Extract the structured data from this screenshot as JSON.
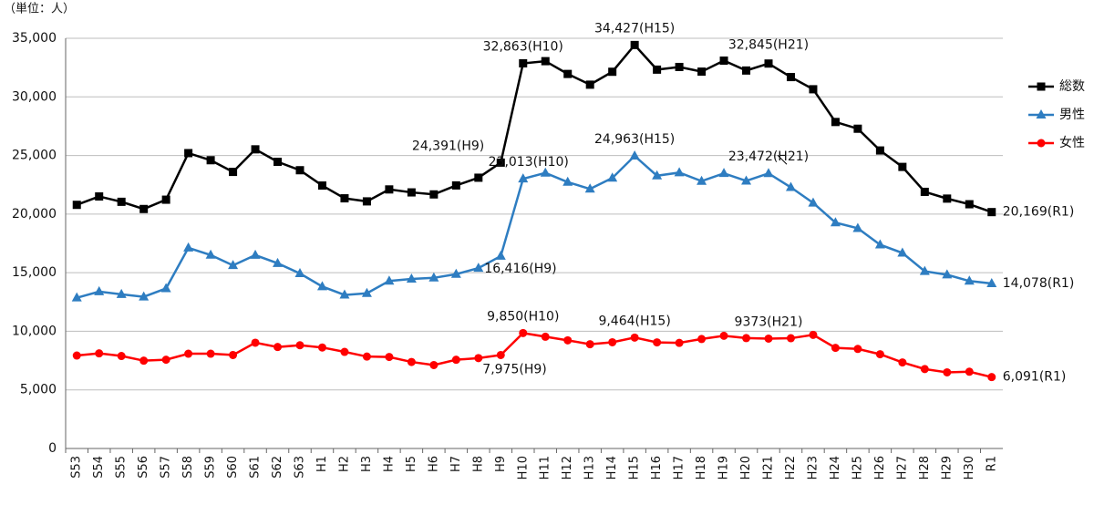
{
  "chart_data": {
    "type": "line",
    "unit_label": "（単位：人）",
    "categories": [
      "S53",
      "S54",
      "S55",
      "S56",
      "S57",
      "S58",
      "S59",
      "S60",
      "S61",
      "S62",
      "S63",
      "H1",
      "H2",
      "H3",
      "H4",
      "H5",
      "H6",
      "H7",
      "H8",
      "H9",
      "H10",
      "H11",
      "H12",
      "H13",
      "H14",
      "H15",
      "H16",
      "H17",
      "H18",
      "H19",
      "H20",
      "H21",
      "H22",
      "H23",
      "H24",
      "H25",
      "H26",
      "H27",
      "H28",
      "H29",
      "H30",
      "R1"
    ],
    "series": [
      {
        "name": "総数",
        "color": "#000000",
        "marker": "square",
        "values": [
          20788,
          21503,
          21048,
          20434,
          21228,
          25202,
          24596,
          23599,
          25524,
          24460,
          23742,
          22436,
          21346,
          21084,
          22104,
          21851,
          21679,
          22445,
          23104,
          24391,
          32863,
          33048,
          31957,
          31042,
          32143,
          34427,
          32325,
          32552,
          32155,
          33093,
          32249,
          32845,
          31690,
          30651,
          27858,
          27283,
          25427,
          24025,
          21897,
          21321,
          20840,
          20169
        ]
      },
      {
        "name": "男性",
        "color": "#2e7dc1",
        "marker": "triangle",
        "values": [
          12859,
          13386,
          13155,
          12942,
          13654,
          17116,
          16508,
          15624,
          16497,
          15802,
          14934,
          13818,
          13102,
          13242,
          14296,
          14468,
          14560,
          14874,
          15393,
          16416,
          23013,
          23512,
          22727,
          22144,
          23080,
          24963,
          23272,
          23540,
          22813,
          23478,
          22831,
          23472,
          22283,
          20955,
          19273,
          18787,
          17386,
          16681,
          15121,
          14826,
          14290,
          14078
        ]
      },
      {
        "name": "女性",
        "color": "#ff0000",
        "marker": "circle",
        "values": [
          7929,
          8117,
          7893,
          7492,
          7574,
          8086,
          8088,
          7975,
          9027,
          8658,
          8808,
          8618,
          8244,
          7842,
          7808,
          7383,
          7119,
          7571,
          7711,
          7975,
          9850,
          9536,
          9230,
          8898,
          9063,
          9464,
          9053,
          9012,
          9342,
          9615,
          9418,
          9373,
          9407,
          9696,
          8585,
          8496,
          8041,
          7344,
          6776,
          6495,
          6550,
          6091
        ]
      }
    ],
    "ylim": [
      0,
      35000
    ],
    "yticks": [
      0,
      {
        "value": 5000,
        "label": "5,000"
      },
      {
        "value": 10000,
        "label": "10,000"
      },
      {
        "value": 15000,
        "label": "15,000"
      },
      {
        "value": 20000,
        "label": "20,000"
      },
      {
        "value": 25000,
        "label": "25,000"
      },
      {
        "value": 30000,
        "label": "30,000"
      },
      {
        "value": 35000,
        "label": "35,000"
      }
    ],
    "grid": true,
    "legend": "right",
    "annotations": [
      {
        "series": 0,
        "index": 19,
        "text": "24,391(H9)"
      },
      {
        "series": 0,
        "index": 20,
        "text": "32,863(H10)"
      },
      {
        "series": 0,
        "index": 25,
        "text": "34,427(H15)"
      },
      {
        "series": 0,
        "index": 31,
        "text": "32,845(H21)"
      },
      {
        "series": 0,
        "index": 41,
        "text": "20,169(R1)"
      },
      {
        "series": 1,
        "index": 19,
        "text": "16,416(H9)"
      },
      {
        "series": 1,
        "index": 20,
        "text": "23,013(H10)"
      },
      {
        "series": 1,
        "index": 25,
        "text": "24,963(H15)"
      },
      {
        "series": 1,
        "index": 31,
        "text": "23,472(H21)"
      },
      {
        "series": 1,
        "index": 41,
        "text": "14,078(R1)"
      },
      {
        "series": 2,
        "index": 19,
        "text": "7,975(H9)"
      },
      {
        "series": 2,
        "index": 20,
        "text": "9,850(H10)"
      },
      {
        "series": 2,
        "index": 25,
        "text": "9,464(H15)"
      },
      {
        "series": 2,
        "index": 31,
        "text": "9373(H21)"
      },
      {
        "series": 2,
        "index": 41,
        "text": "6,091(R1)"
      }
    ]
  }
}
